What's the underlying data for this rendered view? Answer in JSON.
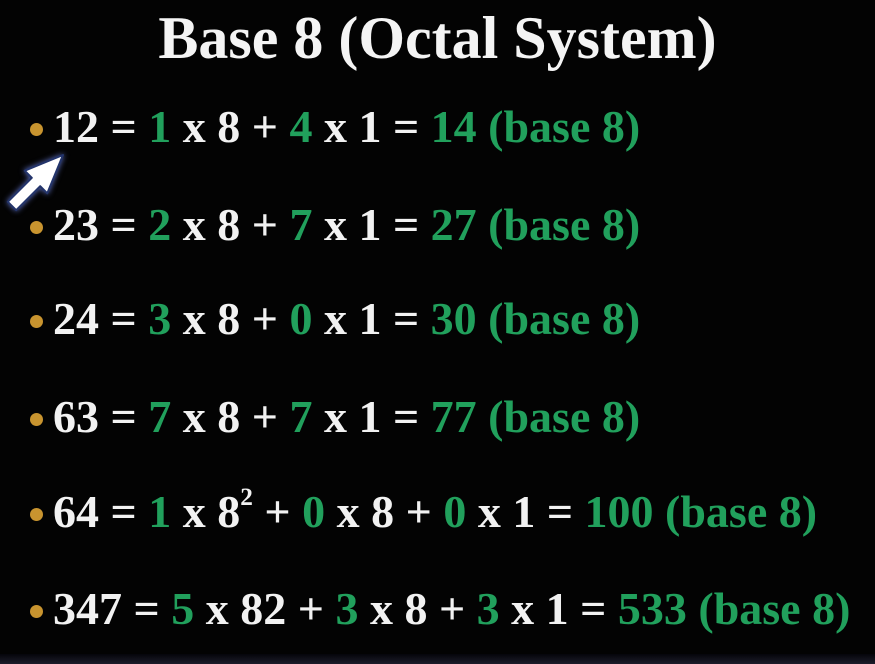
{
  "title": "Base 8 (Octal System)",
  "colors": {
    "green": "#21a05c",
    "white": "#f2f2f2",
    "bullet": "#c8942f",
    "background": "#030303"
  },
  "cursor": {
    "icon": "arrow-pointer-northeast"
  },
  "lines": [
    {
      "tokens": [
        {
          "t": "12",
          "c": "white"
        },
        {
          "t": " = ",
          "c": "white"
        },
        {
          "t": "1",
          "c": "green"
        },
        {
          "t": " x ",
          "c": "white"
        },
        {
          "t": "8",
          "c": "white"
        },
        {
          "t": " + ",
          "c": "white"
        },
        {
          "t": "4",
          "c": "green"
        },
        {
          "t": " x ",
          "c": "white"
        },
        {
          "t": "1",
          "c": "white"
        },
        {
          "t": " = ",
          "c": "white"
        },
        {
          "t": "14 (base 8)",
          "c": "green"
        }
      ]
    },
    {
      "tokens": [
        {
          "t": "23",
          "c": "white"
        },
        {
          "t": " = ",
          "c": "white"
        },
        {
          "t": "2",
          "c": "green"
        },
        {
          "t": " x ",
          "c": "white"
        },
        {
          "t": "8",
          "c": "white"
        },
        {
          "t": " + ",
          "c": "white"
        },
        {
          "t": "7",
          "c": "green"
        },
        {
          "t": " x ",
          "c": "white"
        },
        {
          "t": "1",
          "c": "white"
        },
        {
          "t": " = ",
          "c": "white"
        },
        {
          "t": "27 (base 8)",
          "c": "green"
        }
      ]
    },
    {
      "tokens": [
        {
          "t": "24",
          "c": "white"
        },
        {
          "t": " = ",
          "c": "white"
        },
        {
          "t": "3",
          "c": "green"
        },
        {
          "t": " x ",
          "c": "white"
        },
        {
          "t": "8",
          "c": "white"
        },
        {
          "t": " + ",
          "c": "white"
        },
        {
          "t": "0",
          "c": "green"
        },
        {
          "t": " x ",
          "c": "white"
        },
        {
          "t": "1",
          "c": "white"
        },
        {
          "t": " = ",
          "c": "white"
        },
        {
          "t": "30 (base 8)",
          "c": "green"
        }
      ]
    },
    {
      "tokens": [
        {
          "t": "63",
          "c": "white"
        },
        {
          "t": " = ",
          "c": "white"
        },
        {
          "t": "7",
          "c": "green"
        },
        {
          "t": " x ",
          "c": "white"
        },
        {
          "t": "8",
          "c": "white"
        },
        {
          "t": " + ",
          "c": "white"
        },
        {
          "t": "7",
          "c": "green"
        },
        {
          "t": " x ",
          "c": "white"
        },
        {
          "t": "1",
          "c": "white"
        },
        {
          "t": " = ",
          "c": "white"
        },
        {
          "t": "77 (base 8)",
          "c": "green"
        }
      ]
    },
    {
      "tokens": [
        {
          "t": "64",
          "c": "white"
        },
        {
          "t": " = ",
          "c": "white"
        },
        {
          "t": "1",
          "c": "green"
        },
        {
          "t": " x ",
          "c": "white"
        },
        {
          "t": "8",
          "c": "white"
        },
        {
          "t": "2",
          "c": "white",
          "sup": true
        },
        {
          "t": " + ",
          "c": "white"
        },
        {
          "t": "0",
          "c": "green"
        },
        {
          "t": " x ",
          "c": "white"
        },
        {
          "t": "8",
          "c": "white"
        },
        {
          "t": " + ",
          "c": "white"
        },
        {
          "t": "0",
          "c": "green"
        },
        {
          "t": " x ",
          "c": "white"
        },
        {
          "t": "1",
          "c": "white"
        },
        {
          "t": " = ",
          "c": "white"
        },
        {
          "t": "100 (base 8)",
          "c": "green"
        }
      ]
    },
    {
      "tokens": [
        {
          "t": "347",
          "c": "white"
        },
        {
          "t": " = ",
          "c": "white"
        },
        {
          "t": "5",
          "c": "green"
        },
        {
          "t": " x ",
          "c": "white"
        },
        {
          "t": "82",
          "c": "white"
        },
        {
          "t": " + ",
          "c": "white"
        },
        {
          "t": "3",
          "c": "green"
        },
        {
          "t": " x ",
          "c": "white"
        },
        {
          "t": "8",
          "c": "white"
        },
        {
          "t": " + ",
          "c": "white"
        },
        {
          "t": "3",
          "c": "green"
        },
        {
          "t": " x ",
          "c": "white"
        },
        {
          "t": "1",
          "c": "white"
        },
        {
          "t": " = ",
          "c": "white"
        },
        {
          "t": "533 (base 8)",
          "c": "green"
        }
      ]
    }
  ]
}
